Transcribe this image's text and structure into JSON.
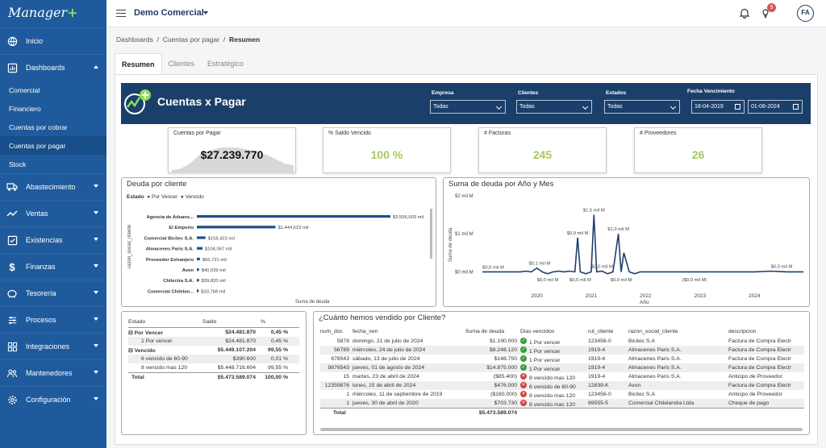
{
  "brand": {
    "name": "Manager",
    "plus": "+"
  },
  "sidebar": {
    "items": [
      {
        "label": "Inicio",
        "icon": "globe-icon"
      },
      {
        "label": "Dashboards",
        "icon": "chart-icon"
      }
    ],
    "subitems": [
      "Comercial",
      "Financiero",
      "Cuentas por cobrar",
      "Cuentas por pagar",
      "Stock"
    ],
    "items2": [
      {
        "label": "Abastecimiento",
        "icon": "truck-icon"
      },
      {
        "label": "Ventas",
        "icon": "trend-icon"
      },
      {
        "label": "Existencias",
        "icon": "checklist-icon"
      },
      {
        "label": "Finanzas",
        "icon": "dollar-icon"
      },
      {
        "label": "Tesorería",
        "icon": "piggybank-icon"
      },
      {
        "label": "Procesos",
        "icon": "sliders-icon"
      },
      {
        "label": "Integraciones",
        "icon": "grid-icon"
      },
      {
        "label": "Mantenedores",
        "icon": "users-icon"
      },
      {
        "label": "Configuración",
        "icon": "gear-icon"
      }
    ]
  },
  "topbar": {
    "org": "Demo Comercial",
    "badge": "9",
    "avatar": "FA"
  },
  "breadcrumb": {
    "a": "Dashboards",
    "sep": "/",
    "b": "Cuentas por pagar",
    "c": "Resumen"
  },
  "tabs": [
    "Resumen",
    "Clientes",
    "Estratégico"
  ],
  "report": {
    "title": "Cuentas x Pagar",
    "filters": {
      "empresa": {
        "label": "Empresa",
        "value": "Todas"
      },
      "clientes": {
        "label": "Clientes",
        "value": "Todas"
      },
      "estados": {
        "label": "Estados",
        "value": "Todas"
      },
      "fecha": {
        "label": "Fecha Vencimiento",
        "from": "18-04-2019",
        "to": "01-08-2024"
      }
    },
    "cards": [
      {
        "label": "Cuentas por Pagar",
        "value": "$27.239.770"
      },
      {
        "label": "% Saldo Vencido",
        "value": "100 %"
      },
      {
        "label": "# Facturas",
        "value": "245"
      },
      {
        "label": "# Proveedores",
        "value": "26"
      }
    ]
  },
  "deuda": {
    "title": "Deuda por cliente",
    "legend": {
      "title": "Estado",
      "a": "Por Vencer",
      "b": "Vencido"
    },
    "yaxis": "razon_social_cliente",
    "xaxis": "Suma de deuda"
  },
  "suma": {
    "title": "Suma de deuda por Año y Mes",
    "ylabel": "Suma de deuda",
    "xlabel": "Año"
  },
  "estado_table": {
    "headers": [
      "Estado",
      "Saldo",
      "%"
    ],
    "rows": [
      {
        "name": "Por Vencer",
        "saldo": "$24.481.870",
        "pct": "0,45 %",
        "toggle": "⊟",
        "bold": true
      },
      {
        "name": "1 Por vencer",
        "saldo": "$24.481.870",
        "pct": "0,45 %",
        "toggle": "",
        "bold": false
      },
      {
        "name": "Vencido",
        "saldo": "$5.449.107.204",
        "pct": "99,55 %",
        "toggle": "⊟",
        "bold": true
      },
      {
        "name": "6 vencido de 60-90",
        "saldo": "$390.600",
        "pct": "0,01 %",
        "toggle": "",
        "bold": false
      },
      {
        "name": "8 vencido mas 120",
        "saldo": "$5.448.716.604",
        "pct": "99,55 %",
        "toggle": "",
        "bold": false
      },
      {
        "name": "Total",
        "saldo": "$5.473.589.074",
        "pct": "100,00 %",
        "toggle": "",
        "bold": true
      }
    ]
  },
  "ventas": {
    "title": "¿Cuánto hemos vendido por Cliente?",
    "headers": [
      "num_doc",
      "fecha_ven",
      "Suma de deuda",
      "Dias vencidos",
      "rut_cliente",
      "razon_social_cliente",
      "descripcion"
    ],
    "rows": [
      {
        "num_doc": "5878",
        "fecha": "domingo, 21 de julio de 2024",
        "deuda": "$1.190.000",
        "status": "ok",
        "dias": "1 Por vencer",
        "rut": "123456-0",
        "razon": "Bicitec S.A",
        "desc": "Factura de Compra Electr"
      },
      {
        "num_doc": "56789",
        "fecha": "miércoles, 24 de julio de 2024",
        "deuda": "$8.248.120",
        "status": "ok",
        "dias": "1 Por vencer",
        "rut": "1919-4",
        "razon": "Almacenes Paris S.A.",
        "desc": "Factura de Compra Electr"
      },
      {
        "num_doc": "678543",
        "fecha": "sábado, 13 de julio de 2024",
        "deuda": "$148.750",
        "status": "ok",
        "dias": "1 Por vencer",
        "rut": "1919-4",
        "razon": "Almacenes Paris S.A.",
        "desc": "Factura de Compra Electr"
      },
      {
        "num_doc": "9876543",
        "fecha": "jueves, 01 de agosto de 2024",
        "deuda": "$14.875.000",
        "status": "ok",
        "dias": "1 Por vencer",
        "rut": "1919-4",
        "razon": "Almacenes Paris S.A.",
        "desc": "Factura de Compra Electr"
      },
      {
        "num_doc": "15",
        "fecha": "martes, 23 de abril de 2024",
        "deuda": "($85.400)",
        "status": "bad",
        "dias": "8 vencido mas 120",
        "rut": "1919-4",
        "razon": "Almacenes Paris S.A.",
        "desc": "Anticipo de Proveedor"
      },
      {
        "num_doc": "12359876",
        "fecha": "lunes, 15 de abril de 2024",
        "deuda": "$476.000",
        "status": "bad",
        "dias": "6 vencido de 60-90",
        "rut": "12839-K",
        "razon": "Avon",
        "desc": "Factura de Compra Electr"
      },
      {
        "num_doc": "1",
        "fecha": "miércoles, 11 de septiembre de 2019",
        "deuda": "($180.000)",
        "status": "bad",
        "dias": "8 vencido mas 120",
        "rut": "123456-0",
        "razon": "Bicitec S.A",
        "desc": "Anticipo de Proveedor"
      },
      {
        "num_doc": "1",
        "fecha": "jueves, 30 de abril de 2020",
        "deuda": "$703.730",
        "status": "bad",
        "dias": "8 vencido mas 120",
        "rut": "89555-5",
        "razon": "Comercial Chilelandia Ltda",
        "desc": "Cheque de pago"
      }
    ],
    "total_label": "Total",
    "total_value": "$5.473.589.074"
  },
  "chart_data": [
    {
      "type": "bar",
      "title": "Deuda por cliente",
      "xlabel": "Suma de deuda",
      "ylabel": "razon_social_cliente",
      "categories": [
        "Agencia de Aduans...",
        "El Emporio",
        "Comercial Bicitec S.A.",
        "Almacenes Paris S.A.",
        "Proveedor Extranjero",
        "Avon",
        "Chilectra S.A.",
        "Comercial Chilelan..."
      ],
      "values": [
        3556603,
        1444623,
        158423,
        104067,
        56721,
        40039,
        39820,
        33768
      ],
      "labels": [
        "$3.556,603 mil",
        "$1.444,623 mil",
        "$158,423 mil",
        "$104,067 mil",
        "$56,721 mil",
        "$40,039 mil",
        "$39,820 mil",
        "$33,768 mil"
      ],
      "max": 3556603
    },
    {
      "type": "line",
      "title": "Suma de deuda por Año y Mes",
      "xlabel": "Año",
      "ylabel": "Suma de deuda",
      "xlim": [
        2019.0,
        2024.9
      ],
      "ylim": [
        -0.5,
        2.0
      ],
      "yticks": [
        {
          "v": 2,
          "label": "$2 mil M"
        },
        {
          "v": 1,
          "label": "$1 mil M"
        },
        {
          "v": 0,
          "label": "$0 mil M"
        }
      ],
      "xticks": [
        2020,
        2021,
        2022,
        2023,
        2024
      ],
      "x": [
        2019.0,
        2019.2,
        2019.4,
        2019.6,
        2019.7,
        2019.8,
        2019.9,
        2020.0,
        2020.1,
        2020.2,
        2020.3,
        2020.4,
        2020.5,
        2020.6,
        2020.7,
        2020.75,
        2020.8,
        2020.9,
        2021.0,
        2021.05,
        2021.1,
        2021.2,
        2021.3,
        2021.4,
        2021.5,
        2021.55,
        2021.6,
        2021.7,
        2021.8,
        2021.9,
        2022.0,
        2022.5,
        2023.0,
        2023.5,
        2024.0,
        2024.3,
        2024.6,
        2024.9
      ],
      "y": [
        0.0,
        0.0,
        0.0,
        0.0,
        0.0,
        0.02,
        0.0,
        0.1,
        0.0,
        -0.05,
        0.0,
        0.02,
        0.0,
        0.02,
        0.0,
        0.9,
        0.0,
        -0.05,
        0.0,
        1.5,
        0.0,
        0.02,
        -0.05,
        0.0,
        1.0,
        0.0,
        0.5,
        0.0,
        -0.05,
        0.0,
        0.0,
        0.0,
        0.0,
        0.0,
        0.0,
        0.02,
        0.0,
        0.0
      ],
      "annotations": [
        {
          "x": 2019.2,
          "y": 0.0,
          "label": "$0,0 mil M"
        },
        {
          "x": 2020.05,
          "y": 0.1,
          "label": "$0,1 mil M"
        },
        {
          "x": 2020.2,
          "y": -0.05,
          "label": "$0,0 mil M"
        },
        {
          "x": 2020.75,
          "y": 0.9,
          "label": "$0,9 mil M"
        },
        {
          "x": 2020.8,
          "y": -0.05,
          "label": "$0,0 mil M"
        },
        {
          "x": 2021.05,
          "y": 1.5,
          "label": "$1,5 mil M"
        },
        {
          "x": 2021.2,
          "y": 0.02,
          "label": "$0,0 mil M"
        },
        {
          "x": 2021.5,
          "y": 1.0,
          "label": "$1,0 mil M"
        },
        {
          "x": 2021.55,
          "y": -0.05,
          "label": "$0,0 mil M"
        },
        {
          "x": 2022.9,
          "y": -0.05,
          "label": "($0,0 mil M)"
        },
        {
          "x": 2024.5,
          "y": 0.02,
          "label": "$0,0 mil M"
        }
      ]
    }
  ]
}
